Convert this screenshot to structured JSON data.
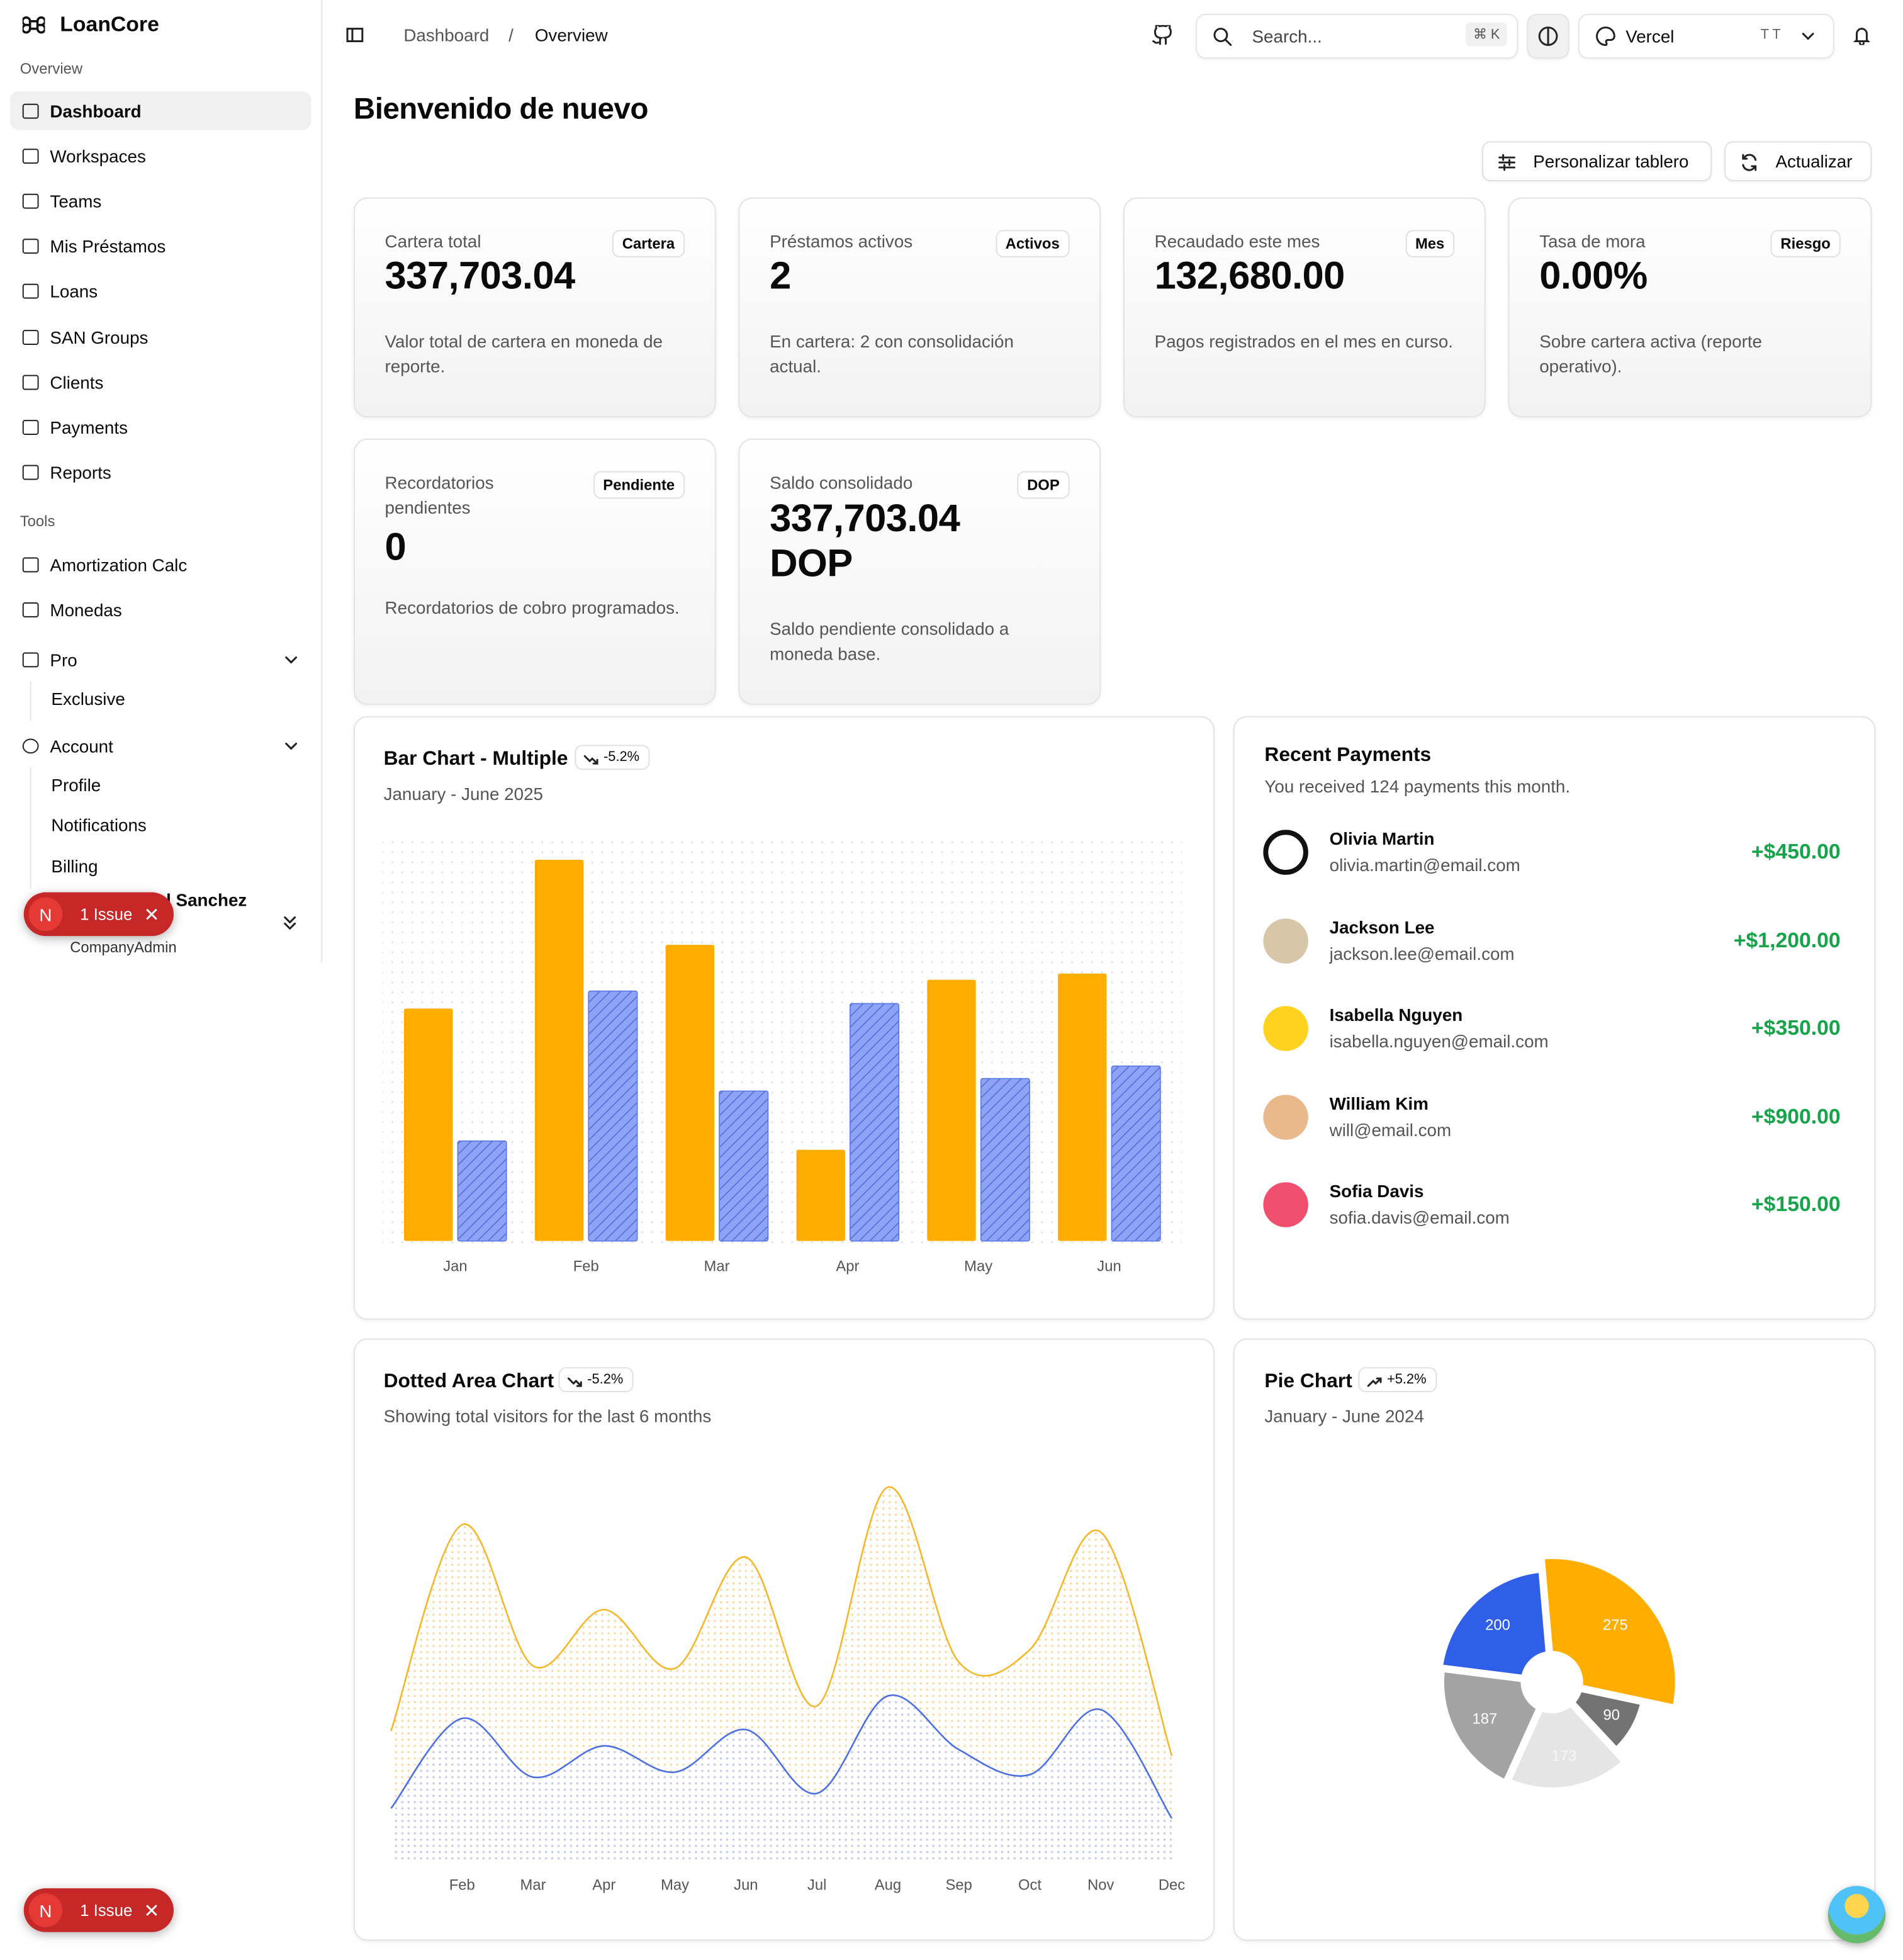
{
  "sidebar": {
    "brand": "LoanCore",
    "groups": [
      {
        "label": "Overview",
        "items": [
          "Dashboard",
          "Workspaces",
          "Teams",
          "Mis Préstamos",
          "Loans",
          "SAN Groups",
          "Clients",
          "Payments",
          "Reports"
        ]
      },
      {
        "label": "Tools",
        "items": [
          "Amortization Calc",
          "Monedas"
        ]
      }
    ],
    "collapsibles": [
      {
        "label": "Pro",
        "items": [
          "Exclusive"
        ]
      },
      {
        "label": "Account",
        "items": [
          "Profile",
          "Notifications",
          "Billing"
        ]
      }
    ],
    "user": {
      "name": "l Sanchez",
      "role": "CompanyAdmin"
    }
  },
  "issue_badges": [
    {
      "letter": "N",
      "label": "1 Issue"
    },
    {
      "letter": "N",
      "label": "1 Issue"
    }
  ],
  "header": {
    "breadcrumb": [
      "Dashboard",
      "/",
      "Overview"
    ],
    "search": "Search...",
    "shortcut": "⌘ K",
    "team": "Vercel",
    "team_avatar": "T T"
  },
  "page": {
    "title": "Bienvenido de nuevo",
    "buttons": [
      "Personalizar tablero",
      "Actualizar"
    ]
  },
  "cards": [
    {
      "label": "Cartera total",
      "badge": "Cartera",
      "value": "337,703.04",
      "description": "Valor total de cartera en moneda de reporte."
    },
    {
      "label": "Préstamos activos",
      "badge": "Activos",
      "value": "2",
      "description": "En cartera: 2 con consolidación actual."
    },
    {
      "label": "Recaudado este mes",
      "badge": "Mes",
      "value": "132,680.00",
      "description": "Pagos registrados en el mes en curso."
    },
    {
      "label": "Tasa de mora",
      "badge": "Riesgo",
      "value": "0.00%",
      "description": "Sobre cartera activa (reporte operativo)."
    },
    {
      "label": "Recordatorios pendientes",
      "badge": "Pendiente",
      "value": "0",
      "description": "Recordatorios de cobro programados."
    },
    {
      "label": "Saldo consolidado",
      "badge": "DOP",
      "value": "337,703.04 DOP",
      "description": "Saldo pendiente consolidado a moneda base."
    }
  ],
  "payments": {
    "title": "Recent Payments",
    "subtitle": "You received 124 payments this month.",
    "items": [
      {
        "name": "Olivia Martin",
        "email": "olivia.martin@email.com",
        "amount": "+$450.00"
      },
      {
        "name": "Jackson Lee",
        "email": "jackson.lee@email.com",
        "amount": "+$1,200.00"
      },
      {
        "name": "Isabella Nguyen",
        "email": "isabella.nguyen@email.com",
        "amount": "+$350.00"
      },
      {
        "name": "William Kim",
        "email": "will@email.com",
        "amount": "+$900.00"
      },
      {
        "name": "Sofia Davis",
        "email": "sofia.davis@email.com",
        "amount": "+$150.00"
      }
    ]
  },
  "chart_data": [
    {
      "type": "bar",
      "title": "Bar Chart - Multiple",
      "trend": "-5.2%",
      "subtitle": "January - June 2025",
      "categories": [
        "Jan",
        "Feb",
        "Mar",
        "Apr",
        "May",
        "Jun"
      ],
      "series": [
        {
          "color": "#ffae00",
          "values": [
            186,
            305,
            237,
            73,
            209,
            214
          ]
        },
        {
          "color": "#8ea3f5",
          "values": [
            80,
            200,
            120,
            190,
            130,
            140
          ]
        }
      ],
      "ylim": [
        0,
        320
      ]
    },
    {
      "type": "area",
      "title": "Dotted Area Chart",
      "trend": "-5.2%",
      "subtitle": "Showing total visitors for the last 6 months",
      "categories": [
        null,
        "Feb",
        "Mar",
        "Apr",
        "May",
        "Jun",
        "Jul",
        "Aug",
        "Sep",
        "Oct",
        "Nov",
        "Dec"
      ],
      "series": [
        {
          "color": "#f5b72a",
          "values": [
            105,
            270,
            157,
            202,
            155,
            244,
            125,
            300,
            160,
            170,
            264,
            85
          ]
        },
        {
          "color": "#4a6fe0",
          "values": [
            43,
            115,
            68,
            93,
            72,
            106,
            55,
            133,
            90,
            70,
            122,
            35
          ]
        }
      ],
      "ylim": [
        0,
        320
      ]
    },
    {
      "type": "pie",
      "title": "Pie Chart",
      "trend": "+5.2%",
      "subtitle": "January - June 2024",
      "values": [
        275,
        90,
        173,
        187,
        200
      ],
      "colors": [
        "#ffae00",
        "#737373",
        "#e5e5e5",
        "#a3a3a3",
        "#2f5ee8"
      ]
    }
  ]
}
